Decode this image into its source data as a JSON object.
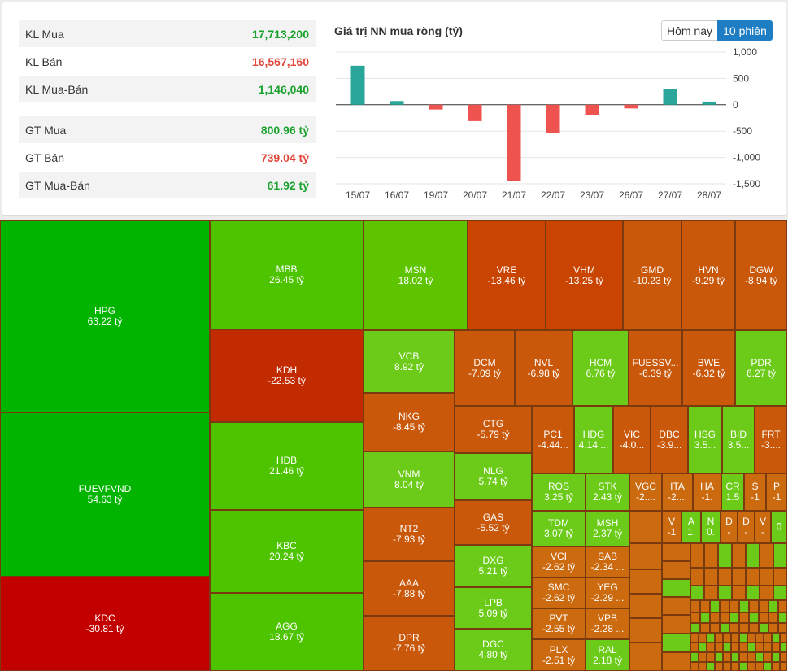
{
  "summary": {
    "rows": [
      {
        "label": "KL Mua",
        "value": "17,713,200",
        "color": "#1aa12e"
      },
      {
        "label": "KL Bán",
        "value": "16,567,160",
        "color": "#e0463a"
      },
      {
        "label": "KL Mua-Bán",
        "value": "1,146,040",
        "color": "#1aa12e"
      },
      {
        "label": "GT Mua",
        "value": "800.96 tỷ",
        "color": "#1aa12e"
      },
      {
        "label": "GT Bán",
        "value": "739.04 tỷ",
        "color": "#e0463a"
      },
      {
        "label": "GT Mua-Bán",
        "value": "61.92 tỷ",
        "color": "#1aa12e"
      }
    ]
  },
  "header": {
    "chart_title": "Giá trị NN mua ròng (tỷ)",
    "btn_today": "Hôm nay",
    "btn_10": "10 phiên"
  },
  "chart_data": {
    "type": "bar",
    "title": "Giá trị NN mua ròng (tỷ)",
    "categories": [
      "15/07",
      "16/07",
      "19/07",
      "20/07",
      "21/07",
      "22/07",
      "23/07",
      "26/07",
      "27/07",
      "28/07"
    ],
    "values": [
      740,
      70,
      -90,
      -310,
      -1450,
      -530,
      -200,
      -70,
      290,
      60
    ],
    "ylim": [
      -1500,
      1000
    ],
    "yticks": [
      1000,
      500,
      0,
      -500,
      -1000,
      -1500
    ],
    "ytick_labels": [
      "1,000",
      "500",
      "0",
      "-500",
      "-1,000",
      "-1,500"
    ],
    "pos_color": "#2ba69a",
    "neg_color": "#ef5350"
  },
  "colors": {
    "g1": "#00b400",
    "g2": "#4ec400",
    "g3": "#5fc400",
    "g4": "#6ccb18",
    "r1": "#c20000",
    "r2": "#c22a00",
    "o1": "#c84400",
    "o2": "#c9580a",
    "o3": "#cc6a10"
  },
  "treemap": [
    {
      "code": "HPG",
      "value": "63.22 tỷ"
    },
    {
      "code": "FUEVFVND",
      "value": "54.63 tỷ"
    },
    {
      "code": "KDC",
      "value": "-30.81 tỷ"
    },
    {
      "code": "MBB",
      "value": "26.45 tỷ"
    },
    {
      "code": "KDH",
      "value": "-22.53 tỷ"
    },
    {
      "code": "HDB",
      "value": "21.46 tỷ"
    },
    {
      "code": "KBC",
      "value": "20.24 tỷ"
    },
    {
      "code": "AGG",
      "value": "18.67 tỷ"
    },
    {
      "code": "MSN",
      "value": "18.02 tỷ"
    },
    {
      "code": "VCB",
      "value": "8.92 tỷ"
    },
    {
      "code": "NKG",
      "value": "-8.45 tỷ"
    },
    {
      "code": "VNM",
      "value": "8.04 tỷ"
    },
    {
      "code": "NT2",
      "value": "-7.93 tỷ"
    },
    {
      "code": "AAA",
      "value": "-7.88 tỷ"
    },
    {
      "code": "DPR",
      "value": "-7.76 tỷ"
    },
    {
      "code": "VRE",
      "value": "-13.46 tỷ"
    },
    {
      "code": "VHM",
      "value": "-13.25 tỷ"
    },
    {
      "code": "GMD",
      "value": "-10.23 tỷ"
    },
    {
      "code": "HVN",
      "value": "-9.29 tỷ"
    },
    {
      "code": "DGW",
      "value": "-8.94 tỷ"
    },
    {
      "code": "DCM",
      "value": "-7.09 tỷ"
    },
    {
      "code": "NVL",
      "value": "-6.98 tỷ"
    },
    {
      "code": "HCM",
      "value": "6.76 tỷ"
    },
    {
      "code": "FUESSV...",
      "value": "-6.39 tỷ"
    },
    {
      "code": "BWE",
      "value": "-6.32 tỷ"
    },
    {
      "code": "PDR",
      "value": "6.27 tỷ"
    },
    {
      "code": "CTG",
      "value": "-5.79 tỷ"
    },
    {
      "code": "NLG",
      "value": "5.74 tỷ"
    },
    {
      "code": "GAS",
      "value": "-5.52 tỷ"
    },
    {
      "code": "DXG",
      "value": "5.21 tỷ"
    },
    {
      "code": "LPB",
      "value": "5.09 tỷ"
    },
    {
      "code": "DGC",
      "value": "4.80 tỷ"
    },
    {
      "code": "PC1",
      "value": "-4.44..."
    },
    {
      "code": "HDG",
      "value": "4.14 ..."
    },
    {
      "code": "VIC",
      "value": "-4.0..."
    },
    {
      "code": "DBC",
      "value": "-3.9..."
    },
    {
      "code": "HSG",
      "value": "3.5..."
    },
    {
      "code": "BID",
      "value": "3.5..."
    },
    {
      "code": "FRT",
      "value": "-3...."
    },
    {
      "code": "ROS",
      "value": "3.25 tỷ"
    },
    {
      "code": "STK",
      "value": "2.43 tỷ"
    },
    {
      "code": "VGC",
      "value": "-2...."
    },
    {
      "code": "ITA",
      "value": "-2...."
    },
    {
      "code": "HA",
      "value": "-1."
    },
    {
      "code": "CR",
      "value": "1.5"
    },
    {
      "code": "S",
      "value": "-1"
    },
    {
      "code": "P",
      "value": "-1"
    },
    {
      "code": "TDM",
      "value": "3.07 tỷ"
    },
    {
      "code": "MSH",
      "value": "2.37 tỷ"
    },
    {
      "code": "V",
      "value": "-1"
    },
    {
      "code": "A",
      "value": "1."
    },
    {
      "code": "N",
      "value": "0."
    },
    {
      "code": "D",
      "value": "-"
    },
    {
      "code": "D",
      "value": "-"
    },
    {
      "code": "V",
      "value": "-"
    },
    {
      "code": "",
      "value": "0"
    },
    {
      "code": "VCI",
      "value": "-2.62 tỷ"
    },
    {
      "code": "SAB",
      "value": "-2.34 ..."
    },
    {
      "code": "SMC",
      "value": "-2.62 tỷ"
    },
    {
      "code": "YEG",
      "value": "-2.29 ..."
    },
    {
      "code": "PVT",
      "value": "-2.55 tỷ"
    },
    {
      "code": "VPB",
      "value": "-2.28 ..."
    },
    {
      "code": "PLX",
      "value": "-2.51 tỷ"
    },
    {
      "code": "RAL",
      "value": "2.18 tỷ"
    }
  ]
}
